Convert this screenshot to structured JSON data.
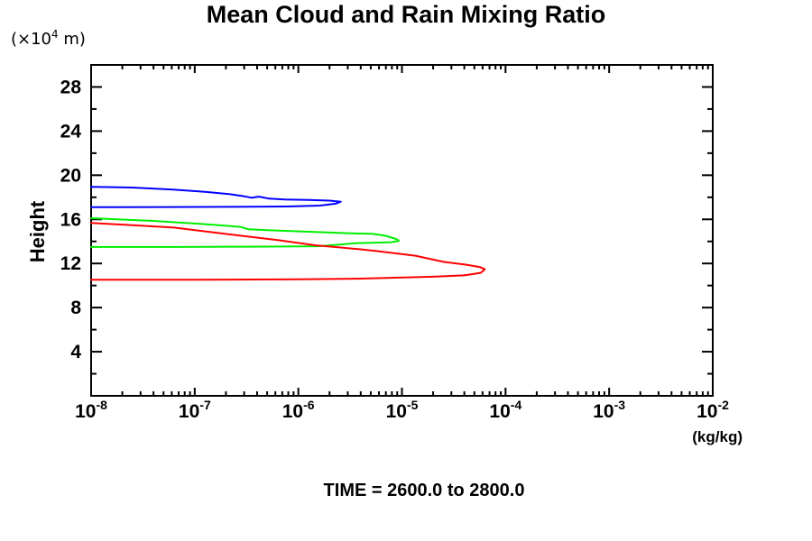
{
  "page": {
    "title": "Mean Cloud and Rain Mixing Ratio",
    "caption": "TIME = 2600.0 to 2800.0"
  },
  "chart_data": {
    "type": "line",
    "title": "Mean Cloud and Rain Mixing Ratio",
    "caption": "TIME = 2600.0 to 2800.0",
    "xlabel": "(kg/kg)",
    "ylabel": "Height",
    "y_unit": {
      "pre": "(×10",
      "exp": "4",
      "post": " m)"
    },
    "y_unit_text": "(x10^4 m)",
    "x_scale": "log",
    "xlim": [
      1e-08,
      0.01
    ],
    "ylim": [
      0,
      30
    ],
    "x_tick_exponents": [
      -8,
      -7,
      -6,
      -5,
      -4,
      -3,
      -2
    ],
    "x_tick_labels": [
      "10^-8",
      "10^-7",
      "10^-6",
      "10^-5",
      "10^-4",
      "10^-3",
      "10^-2"
    ],
    "y_major_ticks": [
      4,
      8,
      12,
      16,
      20,
      24,
      28
    ],
    "y_tick_labels": [
      "4",
      "8",
      "12",
      "16",
      "20",
      "24",
      "28"
    ],
    "y_minor_ticks": [
      2,
      6,
      10,
      14,
      18,
      22,
      26
    ],
    "grid": false,
    "legend": "none",
    "frame": "box with inward ticks on all four sides",
    "series": [
      {
        "name": "blue-profile",
        "color": "#0000ff",
        "points_format": "[log10(mixing_ratio kg/kg), height x10^4 m]",
        "points": [
          [
            -8.0,
            18.95
          ],
          [
            -7.6,
            18.88
          ],
          [
            -7.21,
            18.7
          ],
          [
            -6.9,
            18.5
          ],
          [
            -6.65,
            18.27
          ],
          [
            -6.52,
            18.08
          ],
          [
            -6.45,
            17.96
          ],
          [
            -6.38,
            18.06
          ],
          [
            -6.28,
            17.88
          ],
          [
            -6.13,
            17.8
          ],
          [
            -5.9,
            17.76
          ],
          [
            -5.7,
            17.7
          ],
          [
            -5.59,
            17.6
          ],
          [
            -5.64,
            17.42
          ],
          [
            -5.79,
            17.25
          ],
          [
            -6.1,
            17.17
          ],
          [
            -6.6,
            17.13
          ],
          [
            -7.21,
            17.12
          ],
          [
            -8.0,
            17.1
          ]
        ]
      },
      {
        "name": "green-profile",
        "color": "#00ee00",
        "points_format": "[log10(mixing_ratio kg/kg), height x10^4 m]",
        "points": [
          [
            -8.0,
            16.1
          ],
          [
            -7.4,
            15.86
          ],
          [
            -6.95,
            15.6
          ],
          [
            -6.71,
            15.43
          ],
          [
            -6.55,
            15.3
          ],
          [
            -6.48,
            15.1
          ],
          [
            -6.3,
            15.02
          ],
          [
            -5.9,
            14.88
          ],
          [
            -5.49,
            14.73
          ],
          [
            -5.28,
            14.68
          ],
          [
            -5.16,
            14.52
          ],
          [
            -5.1,
            14.35
          ],
          [
            -5.05,
            14.2
          ],
          [
            -5.03,
            14.05
          ],
          [
            -5.1,
            13.93
          ],
          [
            -5.45,
            13.83
          ],
          [
            -5.81,
            13.56
          ],
          [
            -6.5,
            13.52
          ],
          [
            -7.2,
            13.5
          ],
          [
            -8.0,
            13.5
          ]
        ]
      },
      {
        "name": "red-profile",
        "color": "#ff0000",
        "points_format": "[log10(mixing_ratio kg/kg), height x10^4 m]",
        "points": [
          [
            -8.0,
            15.68
          ],
          [
            -7.2,
            15.25
          ],
          [
            -6.71,
            14.69
          ],
          [
            -6.2,
            14.12
          ],
          [
            -5.83,
            13.64
          ],
          [
            -5.4,
            13.28
          ],
          [
            -5.22,
            13.1
          ],
          [
            -4.87,
            12.7
          ],
          [
            -4.6,
            12.15
          ],
          [
            -4.39,
            11.9
          ],
          [
            -4.25,
            11.68
          ],
          [
            -4.2,
            11.48
          ],
          [
            -4.24,
            11.15
          ],
          [
            -4.4,
            10.92
          ],
          [
            -4.7,
            10.8
          ],
          [
            -4.94,
            10.74
          ],
          [
            -5.4,
            10.63
          ],
          [
            -6.0,
            10.56
          ],
          [
            -7.0,
            10.53
          ],
          [
            -8.0,
            10.52
          ]
        ]
      }
    ]
  }
}
